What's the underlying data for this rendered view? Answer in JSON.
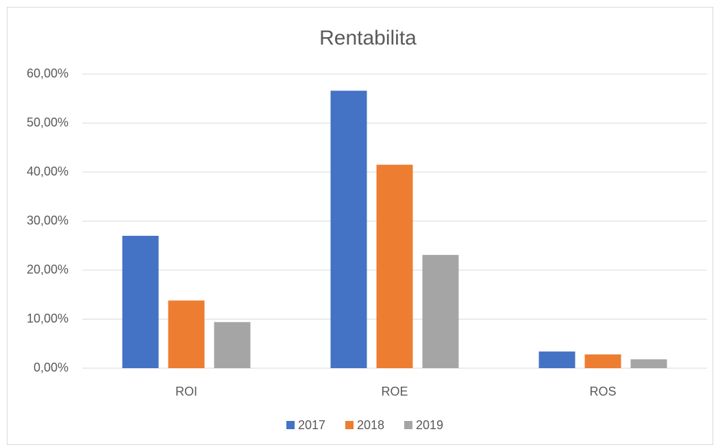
{
  "chart_data": {
    "type": "bar",
    "title": "Rentabilita",
    "categories": [
      "ROI",
      "ROE",
      "ROS"
    ],
    "series": [
      {
        "name": "2017",
        "color": "#4472c4",
        "values": [
          27.0,
          56.6,
          3.4
        ]
      },
      {
        "name": "2018",
        "color": "#ed7d31",
        "values": [
          13.8,
          41.5,
          2.8
        ]
      },
      {
        "name": "2019",
        "color": "#a5a5a5",
        "values": [
          9.4,
          23.1,
          1.8
        ]
      }
    ],
    "ylim": [
      0,
      60
    ],
    "yticks": [
      {
        "value": 0,
        "label": "0,00%"
      },
      {
        "value": 10,
        "label": "10,00%"
      },
      {
        "value": 20,
        "label": "20,00%"
      },
      {
        "value": 30,
        "label": "30,00%"
      },
      {
        "value": 40,
        "label": "40,00%"
      },
      {
        "value": 50,
        "label": "50,00%"
      },
      {
        "value": 60,
        "label": "60,00%"
      }
    ],
    "grid": true,
    "legend": "bottom"
  }
}
